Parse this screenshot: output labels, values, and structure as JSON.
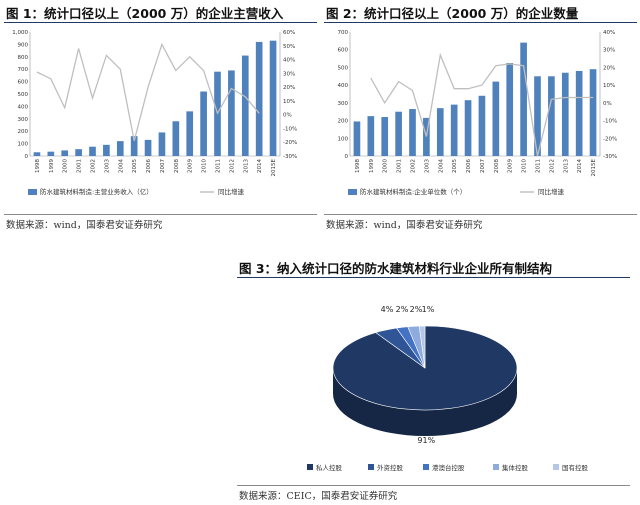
{
  "figures": [
    {
      "title": "图 1：统计口径以上（2000 万）的企业主营收入",
      "source": "数据来源：wind，国泰君安证券研究",
      "chart_data": {
        "type": "bar",
        "categories": [
          "1998",
          "1999",
          "2000",
          "2001",
          "2002",
          "2003",
          "2004",
          "2005",
          "2006",
          "2007",
          "2008",
          "2009",
          "2010",
          "2011",
          "2012",
          "2013",
          "2014",
          "2015E"
        ],
        "ylim_left": [
          0,
          1000
        ],
        "yticks_left": [
          0,
          100,
          200,
          300,
          400,
          500,
          600,
          700,
          800,
          900,
          1000
        ],
        "ytick_labels_left": [
          "0",
          "100",
          "200",
          "300",
          "400",
          "500",
          "600",
          "700",
          "800",
          "900",
          "1,000"
        ],
        "ylim_right": [
          -30,
          60
        ],
        "yticks_right": [
          -30,
          -20,
          -10,
          0,
          10,
          20,
          30,
          40,
          50,
          60
        ],
        "ytick_labels_right": [
          "-30%",
          "-20%",
          "-10%",
          "0%",
          "10%",
          "20%",
          "30%",
          "40%",
          "50%",
          "60%"
        ],
        "series": [
          {
            "name": "防水建筑材料制造:主营业务收入（亿）",
            "type": "bar",
            "axis": "left",
            "color": "#4f81bd",
            "values": [
              30,
              35,
              45,
              55,
              75,
              90,
              120,
              160,
              130,
              190,
              280,
              360,
              520,
              680,
              690,
              810,
              920,
              930
            ]
          },
          {
            "name": "同比增速",
            "type": "line",
            "axis": "right",
            "color": "#bfbfbf",
            "values": [
              31,
              26,
              5,
              48,
              12,
              43,
              33,
              -19,
              20,
              51,
              32,
              42,
              32,
              1,
              19,
              13,
              1,
              null
            ]
          }
        ]
      }
    },
    {
      "title": "图 2：统计口径以上（2000 万）的企业数量",
      "source": "数据来源：wind，国泰君安证券研究",
      "chart_data": {
        "type": "bar",
        "categories": [
          "1998",
          "1999",
          "2000",
          "2001",
          "2002",
          "2003",
          "2004",
          "2005",
          "2006",
          "2007",
          "2008",
          "2009",
          "2010",
          "2011",
          "2012",
          "2013",
          "2014",
          "2015E"
        ],
        "ylim_left": [
          0,
          700
        ],
        "yticks_left": [
          0,
          100,
          200,
          300,
          400,
          500,
          600,
          700
        ],
        "ytick_labels_left": [
          "0",
          "100",
          "200",
          "300",
          "400",
          "500",
          "600",
          "700"
        ],
        "ylim_right": [
          -30,
          40
        ],
        "yticks_right": [
          -30,
          -20,
          -10,
          0,
          10,
          20,
          30,
          40
        ],
        "ytick_labels_right": [
          "-30%",
          "-20%",
          "-10%",
          "0%",
          "10%",
          "20%",
          "30%",
          "40%"
        ],
        "series": [
          {
            "name": "防水建筑材料制造:企业单位数（个）",
            "type": "bar",
            "axis": "left",
            "color": "#4f81bd",
            "values": [
              195,
              225,
              220,
              250,
              265,
              215,
              270,
              290,
              315,
              340,
              420,
              525,
              640,
              450,
              450,
              470,
              480,
              490
            ]
          },
          {
            "name": "同比增速",
            "type": "line",
            "axis": "right",
            "color": "#bfbfbf",
            "values": [
              null,
              14,
              0,
              12,
              7,
              -19,
              27,
              8,
              8,
              10,
              21,
              22,
              21,
              -30,
              2,
              3,
              3,
              3
            ]
          }
        ]
      }
    },
    {
      "title": "图 3：纳入统计口径的防水建筑材料行业企业所有制结构",
      "source": "数据来源：CEIC，国泰君安证券研究",
      "chart_data": {
        "type": "pie",
        "slices": [
          {
            "label": "私人控股",
            "value": 91,
            "text": "91%",
            "color": "#1f3864"
          },
          {
            "label": "外资控股",
            "value": 4,
            "text": "4%",
            "color": "#2f5597"
          },
          {
            "label": "港澳台控股",
            "value": 2,
            "text": "2%",
            "color": "#4472c4"
          },
          {
            "label": "集体控股",
            "value": 2,
            "text": "2%",
            "color": "#8faadc"
          },
          {
            "label": "国有控股",
            "value": 1,
            "text": "1%",
            "color": "#b4c7e7"
          }
        ]
      }
    }
  ]
}
